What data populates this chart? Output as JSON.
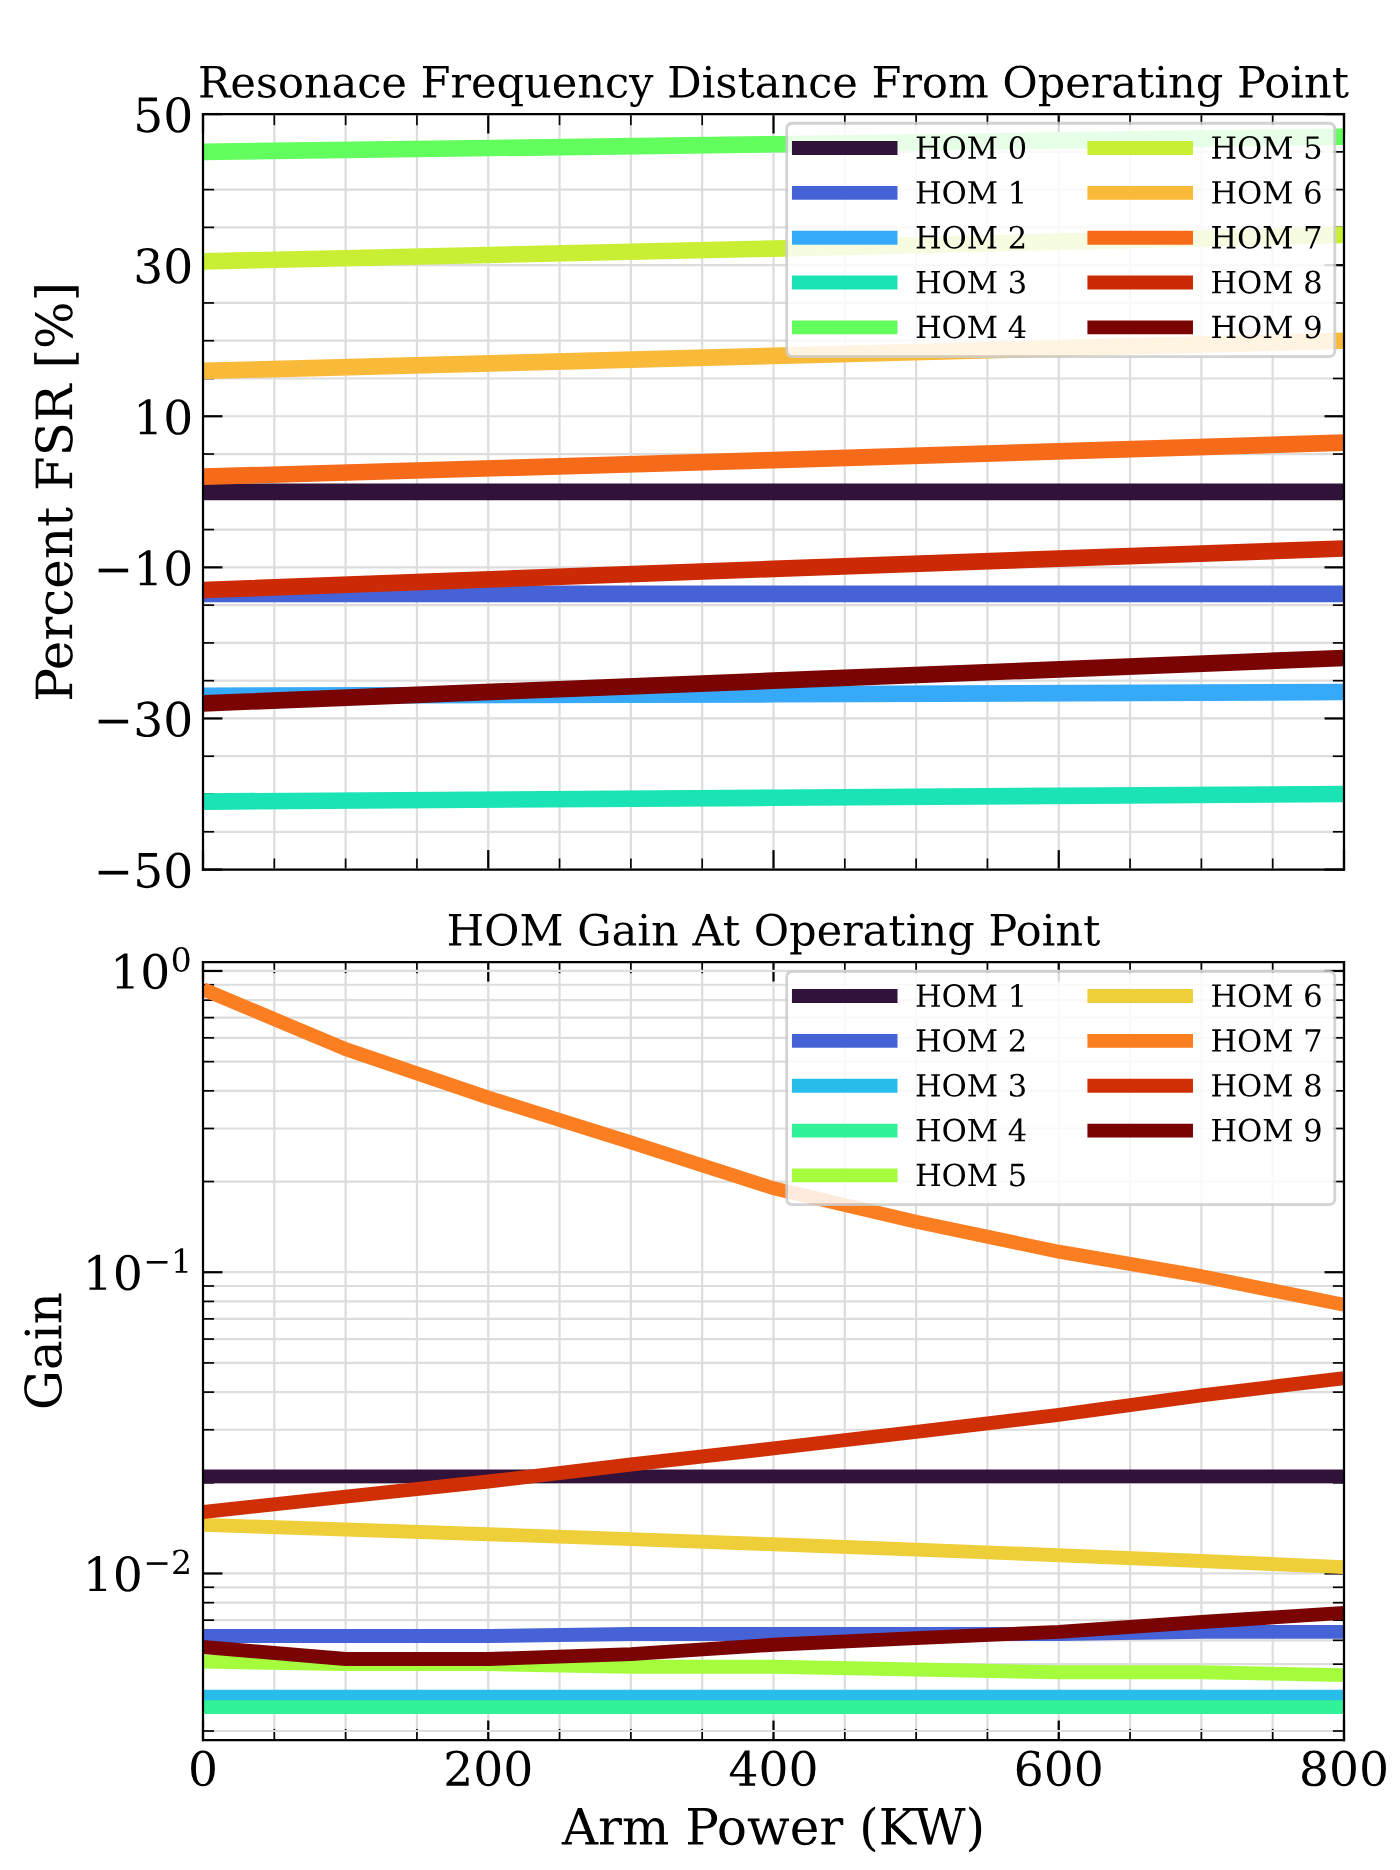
{
  "chart_data": [
    {
      "type": "line",
      "title": "Resonace Frequency Distance From Operating Point",
      "ylabel": "Percent FSR [%]",
      "xlim": [
        0,
        800
      ],
      "xticks": [
        0,
        200,
        400,
        600,
        800
      ],
      "ylim": [
        -50,
        50
      ],
      "yticks": [
        {
          "value": -50,
          "label": "−50"
        },
        {
          "value": -30,
          "label": "−30"
        },
        {
          "value": -10,
          "label": "−10"
        },
        10,
        30,
        50
      ],
      "tick_labels": "y",
      "grid": true,
      "legend": "top right",
      "x": [
        0,
        400,
        800
      ],
      "series": [
        {
          "name": "HOM 0",
          "color": "#30123b",
          "values": [
            0,
            0,
            0
          ]
        },
        {
          "name": "HOM 1",
          "color": "#4662d7",
          "values": [
            -13.5,
            -13.5,
            -13.5
          ]
        },
        {
          "name": "HOM 2",
          "color": "#36aaf9",
          "values": [
            -27,
            -26.8,
            -26.5
          ]
        },
        {
          "name": "HOM 3",
          "color": "#1ae4b6",
          "values": [
            -41,
            -40.5,
            -40
          ]
        },
        {
          "name": "HOM 4",
          "color": "#62fe5e",
          "values": [
            45,
            46,
            47
          ]
        },
        {
          "name": "HOM 5",
          "color": "#c8ef34",
          "values": [
            30.5,
            32.2,
            34
          ]
        },
        {
          "name": "HOM 6",
          "color": "#faba39",
          "values": [
            16,
            18,
            20
          ]
        },
        {
          "name": "HOM 7",
          "color": "#f66b19",
          "values": [
            2,
            4.2,
            6.5
          ]
        },
        {
          "name": "HOM 8",
          "color": "#cb2a04",
          "values": [
            -13,
            -10.2,
            -7.5
          ]
        },
        {
          "name": "HOM 9",
          "color": "#7a0403",
          "values": [
            -28,
            -25,
            -22
          ]
        }
      ]
    },
    {
      "type": "line",
      "title": "HOM Gain At Operating Point",
      "xlabel": "Arm Power (KW)",
      "ylabel": "Gain",
      "log": "y",
      "xlim": [
        0,
        800
      ],
      "xticks": [
        0,
        200,
        400,
        600,
        800
      ],
      "ylim": [
        0.0028,
        1.07
      ],
      "yticks": [
        {
          "value": 0.01,
          "label": "10$^{−2}$"
        },
        {
          "value": 0.1,
          "label": "10$^{−1}$"
        },
        {
          "value": 1,
          "label": "10$^{0}$"
        }
      ],
      "grid": true,
      "legend": "top right",
      "x": [
        0,
        100,
        200,
        300,
        400,
        500,
        600,
        700,
        800
      ],
      "series": [
        {
          "name": "HOM 1",
          "color": "#30123b",
          "values": [
            0.021,
            0.021,
            0.021,
            0.021,
            0.021,
            0.021,
            0.021,
            0.021,
            0.021
          ]
        },
        {
          "name": "HOM 2",
          "color": "#4662d7",
          "values": [
            0.0062,
            0.0062,
            0.0062,
            0.0063,
            0.0063,
            0.0063,
            0.0063,
            0.0064,
            0.0064
          ]
        },
        {
          "name": "HOM 3",
          "color": "#28bceb",
          "values": [
            0.0039,
            0.0039,
            0.0039,
            0.0039,
            0.0039,
            0.0039,
            0.0039,
            0.0039,
            0.0039
          ]
        },
        {
          "name": "HOM 4",
          "color": "#32f298",
          "values": [
            0.0036,
            0.0036,
            0.0036,
            0.0036,
            0.0036,
            0.0036,
            0.0036,
            0.0036,
            0.0036
          ]
        },
        {
          "name": "HOM 5",
          "color": "#a4fc3c",
          "values": [
            0.0051,
            0.005,
            0.005,
            0.0049,
            0.0049,
            0.0048,
            0.0047,
            0.0047,
            0.0046
          ]
        },
        {
          "name": "HOM 6",
          "color": "#eecf3a",
          "values": [
            0.0145,
            0.014,
            0.0135,
            0.013,
            0.0125,
            0.012,
            0.0115,
            0.011,
            0.0105
          ]
        },
        {
          "name": "HOM 7",
          "color": "#fb7e21",
          "values": [
            0.87,
            0.55,
            0.38,
            0.27,
            0.19,
            0.147,
            0.117,
            0.097,
            0.078
          ]
        },
        {
          "name": "HOM 8",
          "color": "#d02f05",
          "values": [
            0.016,
            0.018,
            0.0202,
            0.023,
            0.026,
            0.0295,
            0.0336,
            0.039,
            0.0445
          ]
        },
        {
          "name": "HOM 9",
          "color": "#7a0403",
          "values": [
            0.0057,
            0.0052,
            0.0052,
            0.0054,
            0.0058,
            0.0061,
            0.0064,
            0.0069,
            0.0074
          ]
        }
      ]
    }
  ]
}
